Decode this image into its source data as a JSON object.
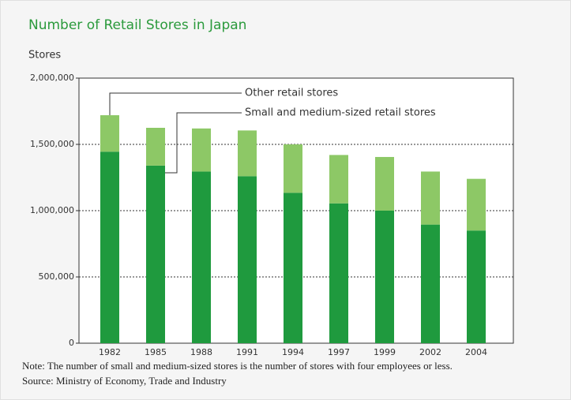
{
  "chart_data": {
    "type": "stacked_bar",
    "title": "Number of Retail Stores in Japan",
    "y_label": "Stores",
    "categories": [
      "1982",
      "1985",
      "1988",
      "1991",
      "1994",
      "1997",
      "1999",
      "2002",
      "2004"
    ],
    "series": [
      {
        "name": "Small and medium-sized retail stores",
        "color": "#1f9a3e",
        "values": [
          1445000,
          1340000,
          1295000,
          1260000,
          1135000,
          1055000,
          1000000,
          895000,
          850000
        ]
      },
      {
        "name": "Other retail stores",
        "color": "#8dc866",
        "values": [
          275000,
          285000,
          325000,
          345000,
          365000,
          365000,
          405000,
          400000,
          390000
        ]
      }
    ],
    "ylim": [
      0,
      2000000
    ],
    "yticks": [
      0,
      {
        "value": 500000,
        "label": "500,000"
      },
      {
        "value": 1000000,
        "label": "1,000,000"
      },
      {
        "value": 1500000,
        "label": "1,500,000"
      },
      {
        "value": 2000000,
        "label": "2,000,000"
      }
    ],
    "grid": true,
    "notes": [
      "Note: The number of small and medium-sized stores is the number of stores with four employees or less.",
      "Source: Ministry of Economy, Trade and Industry"
    ]
  }
}
